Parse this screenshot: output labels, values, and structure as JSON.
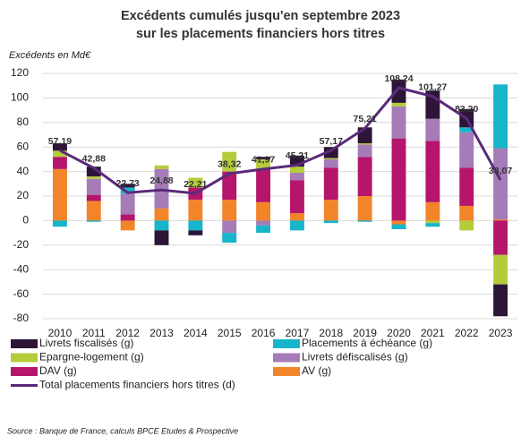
{
  "chart_data": {
    "type": "bar",
    "stacked": true,
    "title": [
      "Excédents cumulés jusqu'en septembre 2023",
      "sur les placements financiers hors titres"
    ],
    "y_label": "Excédents en Md€",
    "source": "Source : Banque de France, calculs BPCE Etudes & Prospective",
    "categories": [
      "2010",
      "2011",
      "2012",
      "2013",
      "2014",
      "2015",
      "2016",
      "2017",
      "2018",
      "2019",
      "2020",
      "2021",
      "2022",
      "2023"
    ],
    "ylim": [
      -80,
      120
    ],
    "yticks": [
      -80,
      -60,
      -40,
      -20,
      0,
      20,
      40,
      60,
      80,
      100,
      120
    ],
    "grid": true,
    "series": [
      {
        "name": "Livrets fiscalisés  (g)",
        "color": "#2d1538",
        "values": [
          6,
          8,
          3,
          -12,
          -4,
          0,
          2,
          9,
          9,
          13,
          19,
          23,
          15,
          -26
        ]
      },
      {
        "name": "Placements à échéance (g)",
        "color": "#17b5c9",
        "values": [
          -5,
          -1,
          5,
          -8,
          -8,
          -8,
          -6,
          -8,
          -2,
          -1,
          -4,
          -3,
          4,
          52
        ]
      },
      {
        "name": "Epargne-logement (g)",
        "color": "#b5cc3a",
        "values": [
          5,
          2,
          0,
          3,
          8,
          16,
          8,
          5,
          1,
          1,
          3,
          -2,
          -8,
          -24
        ]
      },
      {
        "name": "Livrets défiscalisés (g)",
        "color": "#a57cb8",
        "values": [
          0,
          13,
          17,
          32,
          0,
          -10,
          -4,
          6,
          7,
          10,
          26,
          18,
          29,
          58
        ]
      },
      {
        "name": "DAV (g)",
        "color": "#b5166b",
        "values": [
          10,
          5,
          5,
          0,
          10,
          23,
          27,
          27,
          26,
          32,
          67,
          50,
          31,
          -28
        ]
      },
      {
        "name": "AV (g)",
        "color": "#f2852a",
        "values": [
          42,
          16,
          -8,
          10,
          17,
          17,
          15,
          6,
          17,
          20,
          -3,
          15,
          12,
          1
        ]
      },
      {
        "name": "Total placements financiers hors titres (d)",
        "type": "line",
        "color": "#5b2a7a",
        "values": [
          57.19,
          42.88,
          22.73,
          24.88,
          22.21,
          38.32,
          41.97,
          45.21,
          57.17,
          75.21,
          108.24,
          101.27,
          83.2,
          33.07
        ],
        "value_labels": [
          "57,19",
          "42,88",
          "22,73",
          "24,88",
          "22,21",
          "38,32",
          "41,97",
          "45,21",
          "57,17",
          "75,21",
          "108,24",
          "101,27",
          "83,20",
          "33,07"
        ]
      }
    ]
  }
}
